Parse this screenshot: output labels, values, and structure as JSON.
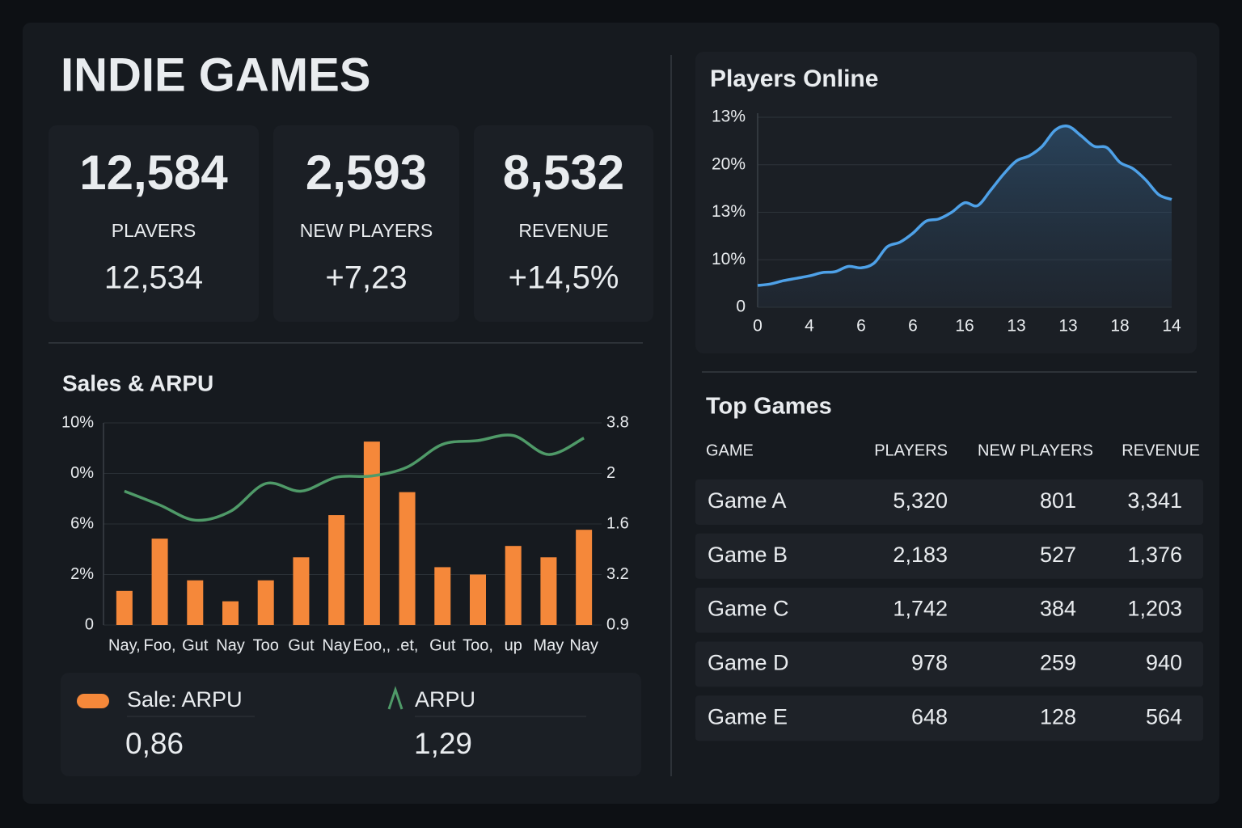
{
  "header": {
    "title": "INDIE GAMES"
  },
  "kpis": [
    {
      "value": "12,584",
      "label": "PLAVERS",
      "sub": "12,534"
    },
    {
      "value": "2,593",
      "label": "NEW PLAYERS",
      "sub": "+7,23"
    },
    {
      "value": "8,532",
      "label": "REVENUE",
      "sub": "+14,5%"
    }
  ],
  "chart_data": [
    {
      "type": "line",
      "title": "Players Online",
      "area": true,
      "grid": true,
      "color": "#4ea1e8",
      "x": [
        0,
        1,
        2,
        3,
        4,
        5,
        6,
        7,
        8,
        9,
        10,
        11,
        12,
        13,
        14,
        15,
        16,
        17,
        18,
        19,
        20,
        21,
        22,
        23,
        24,
        25,
        26,
        27,
        28,
        29,
        30,
        31,
        32
      ],
      "values": [
        4.6,
        4.9,
        5.6,
        6.1,
        6.6,
        7.3,
        7.5,
        8.6,
        8.3,
        9.3,
        12.7,
        13.7,
        15.6,
        18.1,
        18.6,
        20.0,
        22.0,
        21.4,
        24.6,
        28.0,
        30.8,
        31.9,
        33.9,
        37.3,
        38.1,
        36.1,
        33.9,
        33.6,
        30.5,
        29.2,
        26.8,
        23.7,
        22.7
      ],
      "xlim": [
        0,
        32
      ],
      "xticks": [
        0,
        4,
        {
          "value": 8,
          "label": "6"
        },
        {
          "value": 12,
          "label": "6"
        },
        {
          "value": 16,
          "label": "16"
        },
        {
          "value": 20,
          "label": "13"
        },
        {
          "value": 24,
          "label": "13"
        },
        {
          "value": 28,
          "label": "18"
        },
        {
          "value": 32,
          "label": "14"
        }
      ],
      "ylim": [
        0,
        40
      ],
      "yticks": [
        0,
        {
          "value": 10,
          "label": "10%"
        },
        {
          "value": 20,
          "label": "13%"
        },
        {
          "value": 30,
          "label": "20%"
        },
        {
          "value": 40,
          "label": "13%"
        }
      ]
    },
    {
      "type": "bar",
      "title": "Sales & ARPU",
      "grid": true,
      "categories": [
        "Nay,",
        "Foo,",
        "Gut",
        "Nay",
        "Too",
        "Gut",
        "Nay",
        "Eoo,,",
        ".et,",
        "Gut",
        "Too,",
        "up",
        "May",
        "Nay"
      ],
      "series": [
        {
          "name": "Sale: ARPU",
          "color": "#f5883a",
          "values": [
            1.35,
            3.42,
            1.77,
            0.94,
            1.77,
            2.68,
            4.35,
            7.26,
            5.26,
            2.29,
            2.0,
            3.13,
            2.68,
            3.77
          ]
        },
        {
          "name": "ARPU",
          "color": "#4f9a68",
          "type": "line",
          "axis": "y2",
          "values": [
            1.86,
            1.75,
            1.63,
            1.7,
            1.92,
            1.86,
            1.97,
            1.98,
            2.05,
            2.23,
            2.26,
            2.3,
            2.15,
            2.28
          ]
        }
      ],
      "ylim": [
        0,
        8
      ],
      "yticks": [
        0,
        {
          "value": 2,
          "label": "2%"
        },
        {
          "value": 4,
          "label": "6%"
        },
        {
          "value": 6,
          "label": "0%"
        },
        {
          "value": 8,
          "label": "10%"
        }
      ],
      "y2lim": [
        0.8,
        2.4
      ],
      "y2ticks": [
        {
          "value": 0.8,
          "label": "0.9"
        },
        {
          "value": 1.2,
          "label": "3.2"
        },
        1.6,
        2.0,
        {
          "value": 2.4,
          "label": "3.8"
        }
      ]
    }
  ],
  "sales_summary": [
    "0,86",
    "1,29"
  ],
  "table": {
    "title": "Top Games",
    "headers": [
      "GAME",
      "PLAYERS",
      "NEW PLAYERS",
      "REVENUE"
    ],
    "rows": [
      [
        "Game A",
        "5,320",
        "801",
        "3,341"
      ],
      [
        "Game B",
        "2,183",
        "527",
        "1,376"
      ],
      [
        "Game C",
        "1,742",
        "384",
        "1,203"
      ],
      [
        "Game D",
        "978",
        "259",
        "940"
      ],
      [
        "Game E",
        "648",
        "128",
        "564"
      ]
    ]
  }
}
